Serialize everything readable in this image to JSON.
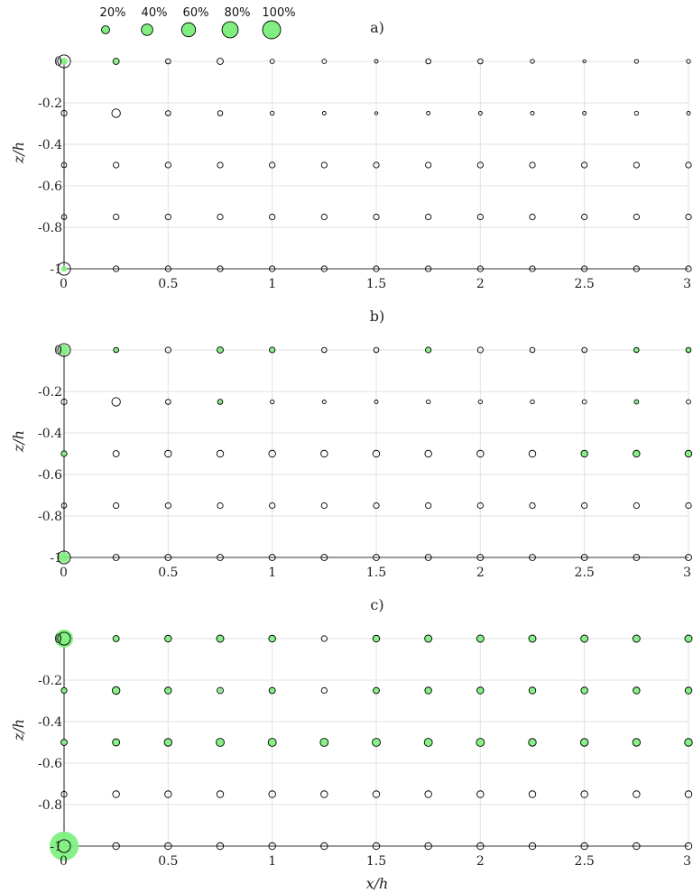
{
  "legend": {
    "labels": [
      "20%",
      "40%",
      "60%",
      "80%",
      "100%"
    ],
    "values": [
      20,
      40,
      60,
      80,
      100
    ]
  },
  "colors": {
    "fill": "#7ff07f",
    "edge": "#000000",
    "grid": "#e2e2e2"
  },
  "chart_data": [
    {
      "type": "scatter",
      "title": "a)",
      "ylabel": "z/h",
      "xlabel": "",
      "xlim": [
        0,
        3
      ],
      "ylim": [
        -1,
        0
      ],
      "x": [
        0,
        0.25,
        0.5,
        0.75,
        1,
        1.25,
        1.5,
        1.75,
        2,
        2.25,
        2.5,
        2.75,
        3
      ],
      "z": [
        0,
        -0.25,
        -0.5,
        -0.75,
        -1
      ],
      "xticklabels": [
        "0",
        "0.5",
        "1",
        "1.5",
        "2",
        "2.5",
        "3"
      ],
      "yticklabels": [
        "0",
        "-0.2",
        "-0.4",
        "-0.6",
        "-0.8",
        "-1"
      ],
      "open_sizes": [
        [
          50,
          12,
          8,
          12,
          6,
          6,
          4,
          8,
          8,
          5,
          3,
          5,
          5
        ],
        [
          10,
          22,
          8,
          8,
          5,
          4,
          3,
          4,
          4,
          4,
          4,
          5,
          4
        ],
        [
          8,
          10,
          10,
          10,
          10,
          10,
          10,
          10,
          10,
          10,
          10,
          10,
          10
        ],
        [
          8,
          10,
          10,
          10,
          10,
          10,
          10,
          10,
          10,
          10,
          10,
          10,
          10
        ],
        [
          50,
          10,
          10,
          10,
          10,
          10,
          10,
          10,
          10,
          10,
          10,
          10,
          10
        ]
      ],
      "green_sizes": [
        [
          15,
          8,
          0,
          0,
          0,
          0,
          0,
          0,
          0,
          0,
          0,
          0,
          0
        ],
        [
          0,
          0,
          0,
          0,
          0,
          0,
          0,
          0,
          0,
          0,
          0,
          0,
          0
        ],
        [
          0,
          0,
          0,
          0,
          0,
          0,
          0,
          0,
          0,
          0,
          0,
          0,
          0
        ],
        [
          0,
          0,
          0,
          0,
          0,
          0,
          0,
          0,
          0,
          0,
          0,
          0,
          0
        ],
        [
          10,
          0,
          0,
          0,
          0,
          0,
          0,
          0,
          0,
          0,
          0,
          0,
          0
        ]
      ]
    },
    {
      "type": "scatter",
      "title": "b)",
      "ylabel": "z/h",
      "xlabel": "",
      "xlim": [
        0,
        3
      ],
      "ylim": [
        -1,
        0
      ],
      "x": [
        0,
        0.25,
        0.5,
        0.75,
        1,
        1.25,
        1.5,
        1.75,
        2,
        2.25,
        2.5,
        2.75,
        3
      ],
      "z": [
        0,
        -0.25,
        -0.5,
        -0.75,
        -1
      ],
      "xticklabels": [
        "0",
        "0.5",
        "1",
        "1.5",
        "2",
        "2.5",
        "3"
      ],
      "yticklabels": [
        "0",
        "-0.2",
        "-0.4",
        "-0.6",
        "-0.8",
        "-1"
      ],
      "open_sizes": [
        [
          50,
          8,
          10,
          12,
          10,
          8,
          8,
          10,
          10,
          8,
          8,
          8,
          8
        ],
        [
          10,
          22,
          8,
          8,
          5,
          4,
          4,
          5,
          5,
          5,
          6,
          6,
          6
        ],
        [
          10,
          12,
          14,
          14,
          14,
          14,
          14,
          14,
          14,
          14,
          14,
          14,
          14
        ],
        [
          8,
          10,
          10,
          10,
          10,
          10,
          10,
          10,
          10,
          10,
          10,
          10,
          10
        ],
        [
          50,
          12,
          12,
          12,
          12,
          12,
          12,
          12,
          12,
          12,
          12,
          12,
          12
        ]
      ],
      "green_sizes": [
        [
          34,
          8,
          0,
          12,
          10,
          0,
          0,
          10,
          0,
          0,
          0,
          8,
          8
        ],
        [
          0,
          0,
          0,
          6,
          0,
          0,
          0,
          0,
          0,
          0,
          0,
          6,
          0
        ],
        [
          10,
          0,
          0,
          0,
          0,
          0,
          0,
          0,
          0,
          0,
          14,
          14,
          14
        ],
        [
          0,
          0,
          0,
          0,
          0,
          0,
          0,
          0,
          0,
          0,
          0,
          0,
          0
        ],
        [
          34,
          0,
          0,
          0,
          0,
          0,
          0,
          0,
          0,
          0,
          0,
          0,
          0
        ]
      ]
    },
    {
      "type": "scatter",
      "title": "c)",
      "ylabel": "z/h",
      "xlabel": "x/h",
      "xlim": [
        0,
        3
      ],
      "ylim": [
        -1,
        0
      ],
      "x": [
        0,
        0.25,
        0.5,
        0.75,
        1,
        1.25,
        1.5,
        1.75,
        2,
        2.25,
        2.5,
        2.75,
        3
      ],
      "z": [
        0,
        -0.25,
        -0.5,
        -0.75,
        -1
      ],
      "xticklabels": [
        "0",
        "0.5",
        "1",
        "1.5",
        "2",
        "2.5",
        "3"
      ],
      "yticklabels": [
        "0",
        "-0.2",
        "-0.4",
        "-0.6",
        "-0.8",
        "-1"
      ],
      "open_sizes": [
        [
          50,
          12,
          14,
          16,
          14,
          10,
          14,
          16,
          16,
          16,
          16,
          16,
          16
        ],
        [
          10,
          18,
          14,
          12,
          12,
          10,
          12,
          14,
          14,
          14,
          14,
          14,
          14
        ],
        [
          12,
          16,
          18,
          20,
          20,
          20,
          20,
          20,
          20,
          18,
          18,
          18,
          18
        ],
        [
          10,
          14,
          14,
          14,
          14,
          14,
          14,
          14,
          14,
          14,
          14,
          14,
          14
        ],
        [
          50,
          14,
          14,
          14,
          14,
          14,
          14,
          14,
          14,
          14,
          14,
          14,
          14
        ]
      ],
      "green_sizes": [
        [
          100,
          12,
          14,
          16,
          14,
          0,
          14,
          16,
          16,
          16,
          16,
          16,
          16
        ],
        [
          10,
          18,
          14,
          6,
          12,
          0,
          12,
          14,
          14,
          14,
          14,
          14,
          14
        ],
        [
          12,
          16,
          18,
          20,
          20,
          20,
          20,
          20,
          20,
          18,
          18,
          18,
          18
        ],
        [
          0,
          0,
          0,
          0,
          0,
          0,
          0,
          0,
          0,
          0,
          0,
          0,
          0
        ],
        [
          260,
          0,
          0,
          0,
          0,
          0,
          0,
          0,
          0,
          0,
          0,
          0,
          0
        ]
      ]
    }
  ]
}
